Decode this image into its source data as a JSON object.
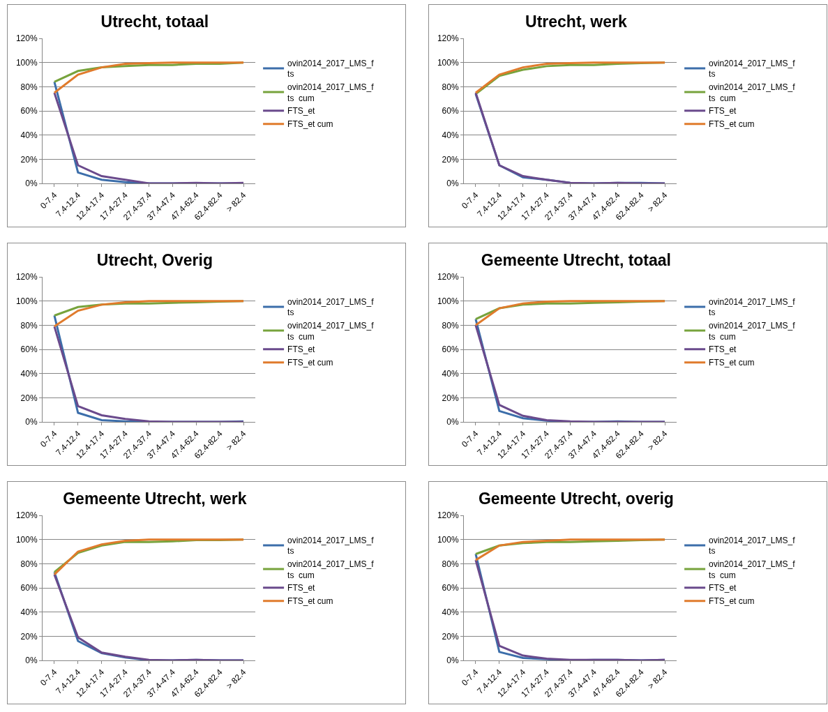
{
  "chart_data": [
    {
      "type": "line",
      "title": "Utrecht, totaal",
      "categories": [
        "0-7.4",
        "7.4-12.4",
        "12.4-17.4",
        "17.4-27.4",
        "27.4-37.4",
        "37.4-47.4",
        "47.4-62.4",
        "62.4-82.4",
        "> 82.4"
      ],
      "ylim": [
        0,
        120
      ],
      "yticks": [
        {
          "value": 0,
          "label": "0%"
        },
        {
          "value": 20,
          "label": "20%"
        },
        {
          "value": 40,
          "label": "40%"
        },
        {
          "value": 60,
          "label": "60%"
        },
        {
          "value": 80,
          "label": "80%"
        },
        {
          "value": 100,
          "label": "100%"
        },
        {
          "value": 120,
          "label": "120%"
        }
      ],
      "grid": "y",
      "legend": "right",
      "marker": "none",
      "series": [
        {
          "name": "ovin2014_2017_LMS_fts",
          "color": "#3c6eaa",
          "values": [
            84,
            9,
            3,
            1,
            0,
            0,
            0,
            0,
            0
          ]
        },
        {
          "name": "ovin2014_2017_LMS_fts  cum",
          "color": "#77a33c",
          "values": [
            84,
            93,
            96,
            97,
            98,
            98,
            99,
            99,
            100
          ]
        },
        {
          "name": "FTS_et",
          "color": "#6a4a8c",
          "values": [
            75,
            15,
            6,
            3,
            0,
            0,
            0.5,
            0,
            0.5
          ]
        },
        {
          "name": "FTS_et cum",
          "color": "#e07b2c",
          "values": [
            75,
            90,
            96,
            99,
            99.5,
            100,
            100,
            100,
            100
          ]
        }
      ]
    },
    {
      "type": "line",
      "title": "Utrecht, werk",
      "categories": [
        "0-7.4",
        "7.4-12.4",
        "12.4-17.4",
        "17.4-27.4",
        "27.4-37.4",
        "37.4-47.4",
        "47.4-62.4",
        "62.4-82.4",
        "> 82.4"
      ],
      "ylim": [
        0,
        120
      ],
      "yticks": [
        {
          "value": 0,
          "label": "0%"
        },
        {
          "value": 20,
          "label": "20%"
        },
        {
          "value": 40,
          "label": "40%"
        },
        {
          "value": 60,
          "label": "60%"
        },
        {
          "value": 80,
          "label": "80%"
        },
        {
          "value": 100,
          "label": "100%"
        },
        {
          "value": 120,
          "label": "120%"
        }
      ],
      "grid": "y",
      "legend": "right",
      "marker": "none",
      "series": [
        {
          "name": "ovin2014_2017_LMS_fts",
          "color": "#3c6eaa",
          "values": [
            74,
            15,
            5,
            3,
            0.5,
            0,
            0.5,
            0.5,
            0
          ]
        },
        {
          "name": "ovin2014_2017_LMS_fts  cum",
          "color": "#77a33c",
          "values": [
            74,
            89,
            94,
            97,
            98,
            98,
            99,
            99.5,
            100
          ]
        },
        {
          "name": "FTS_et",
          "color": "#6a4a8c",
          "values": [
            75,
            15,
            6,
            3,
            0.5,
            0,
            0.5,
            0,
            0
          ]
        },
        {
          "name": "FTS_et cum",
          "color": "#e07b2c",
          "values": [
            75,
            90,
            96,
            99,
            99.5,
            100,
            100,
            100,
            100
          ]
        }
      ]
    },
    {
      "type": "line",
      "title": "Utrecht, Overig",
      "categories": [
        "0-7.4",
        "7.4-12.4",
        "12.4-17.4",
        "17.4-27.4",
        "27.4-37.4",
        "37.4-47.4",
        "47.4-62.4",
        "62.4-82.4",
        "> 82.4"
      ],
      "ylim": [
        0,
        120
      ],
      "yticks": [
        {
          "value": 0,
          "label": "0%"
        },
        {
          "value": 20,
          "label": "20%"
        },
        {
          "value": 40,
          "label": "40%"
        },
        {
          "value": 60,
          "label": "60%"
        },
        {
          "value": 80,
          "label": "80%"
        },
        {
          "value": 100,
          "label": "100%"
        },
        {
          "value": 120,
          "label": "120%"
        }
      ],
      "grid": "y",
      "legend": "right",
      "marker": "none",
      "series": [
        {
          "name": "ovin2014_2017_LMS_fts",
          "color": "#3c6eaa",
          "values": [
            88,
            7.5,
            1.5,
            0.5,
            0,
            0,
            0,
            0,
            0.5
          ]
        },
        {
          "name": "ovin2014_2017_LMS_fts  cum",
          "color": "#77a33c",
          "values": [
            88,
            95,
            97,
            98,
            98,
            98.5,
            99,
            99.5,
            100
          ]
        },
        {
          "name": "FTS_et",
          "color": "#6a4a8c",
          "values": [
            79,
            13,
            5.5,
            2.5,
            0.5,
            0,
            0,
            0,
            0
          ]
        },
        {
          "name": "FTS_et cum",
          "color": "#e07b2c",
          "values": [
            79,
            92,
            97,
            99,
            100,
            100,
            100,
            100,
            100
          ]
        }
      ]
    },
    {
      "type": "line",
      "title": "Gemeente Utrecht, totaal",
      "categories": [
        "0-7.4",
        "7.4-12.4",
        "12.4-17.4",
        "17.4-27.4",
        "27.4-37.4",
        "37.4-47.4",
        "47.4-62.4",
        "62.4-82.4",
        "> 82.4"
      ],
      "ylim": [
        0,
        120
      ],
      "yticks": [
        {
          "value": 0,
          "label": "0%"
        },
        {
          "value": 20,
          "label": "20%"
        },
        {
          "value": 40,
          "label": "40%"
        },
        {
          "value": 60,
          "label": "60%"
        },
        {
          "value": 80,
          "label": "80%"
        },
        {
          "value": 100,
          "label": "100%"
        },
        {
          "value": 120,
          "label": "120%"
        }
      ],
      "grid": "y",
      "legend": "right",
      "marker": "none",
      "series": [
        {
          "name": "ovin2014_2017_LMS_fts",
          "color": "#3c6eaa",
          "values": [
            85,
            9,
            3,
            1,
            0,
            0,
            0.5,
            0,
            0
          ]
        },
        {
          "name": "ovin2014_2017_LMS_fts  cum",
          "color": "#77a33c",
          "values": [
            85,
            94,
            97,
            98,
            98,
            98.5,
            99,
            99.5,
            100
          ]
        },
        {
          "name": "FTS_et",
          "color": "#6a4a8c",
          "values": [
            80,
            14,
            5,
            1.5,
            0.5,
            0,
            0,
            0,
            0
          ]
        },
        {
          "name": "FTS_et cum",
          "color": "#e07b2c",
          "values": [
            80,
            94,
            98,
            99.5,
            100,
            100,
            100,
            100,
            100
          ]
        }
      ]
    },
    {
      "type": "line",
      "title": "Gemeente Utrecht, werk",
      "categories": [
        "0-7.4",
        "7.4-12.4",
        "12.4-17.4",
        "17.4-27.4",
        "27.4-37.4",
        "37.4-47.4",
        "47.4-62.4",
        "62.4-82.4",
        "> 82.4"
      ],
      "ylim": [
        0,
        120
      ],
      "yticks": [
        {
          "value": 0,
          "label": "0%"
        },
        {
          "value": 20,
          "label": "20%"
        },
        {
          "value": 40,
          "label": "40%"
        },
        {
          "value": 60,
          "label": "60%"
        },
        {
          "value": 80,
          "label": "80%"
        },
        {
          "value": 100,
          "label": "100%"
        },
        {
          "value": 120,
          "label": "120%"
        }
      ],
      "grid": "y",
      "legend": "right",
      "marker": "none",
      "series": [
        {
          "name": "ovin2014_2017_LMS_fts",
          "color": "#3c6eaa",
          "values": [
            73,
            16,
            6,
            2.5,
            0,
            0,
            0.5,
            0,
            0
          ]
        },
        {
          "name": "ovin2014_2017_LMS_fts  cum",
          "color": "#77a33c",
          "values": [
            73,
            89,
            95,
            98,
            98,
            98.5,
            99.5,
            99.5,
            100
          ]
        },
        {
          "name": "FTS_et",
          "color": "#6a4a8c",
          "values": [
            71,
            19,
            6.5,
            3,
            0.5,
            0,
            0.5,
            0,
            0
          ]
        },
        {
          "name": "FTS_et cum",
          "color": "#e07b2c",
          "values": [
            71,
            90,
            96,
            99,
            100,
            100,
            100,
            100,
            100
          ]
        }
      ]
    },
    {
      "type": "line",
      "title": "Gemeente Utrecht, overig",
      "categories": [
        "0-7.4",
        "7.4-12.4",
        "12.4-17.4",
        "17.4-27.4",
        "27.4-37.4",
        "37.4-47.4",
        "47.4-62.4",
        "62.4-82.4",
        "> 82.4"
      ],
      "ylim": [
        0,
        120
      ],
      "yticks": [
        {
          "value": 0,
          "label": "0%"
        },
        {
          "value": 20,
          "label": "20%"
        },
        {
          "value": 40,
          "label": "40%"
        },
        {
          "value": 60,
          "label": "60%"
        },
        {
          "value": 80,
          "label": "80%"
        },
        {
          "value": 100,
          "label": "100%"
        },
        {
          "value": 120,
          "label": "120%"
        }
      ],
      "grid": "y",
      "legend": "right",
      "marker": "none",
      "series": [
        {
          "name": "ovin2014_2017_LMS_fts",
          "color": "#3c6eaa",
          "values": [
            88,
            7,
            2,
            1,
            0,
            0.5,
            0.5,
            0,
            0.5
          ]
        },
        {
          "name": "ovin2014_2017_LMS_fts  cum",
          "color": "#77a33c",
          "values": [
            88,
            95,
            97,
            98,
            98,
            98.5,
            99,
            99.5,
            100
          ]
        },
        {
          "name": "FTS_et",
          "color": "#6a4a8c",
          "values": [
            83,
            12,
            4,
            1.5,
            0.5,
            0.5,
            0.5,
            0,
            0.5
          ]
        },
        {
          "name": "FTS_et cum",
          "color": "#e07b2c",
          "values": [
            83,
            95,
            98,
            99,
            100,
            100,
            100,
            100,
            100
          ]
        }
      ]
    }
  ]
}
